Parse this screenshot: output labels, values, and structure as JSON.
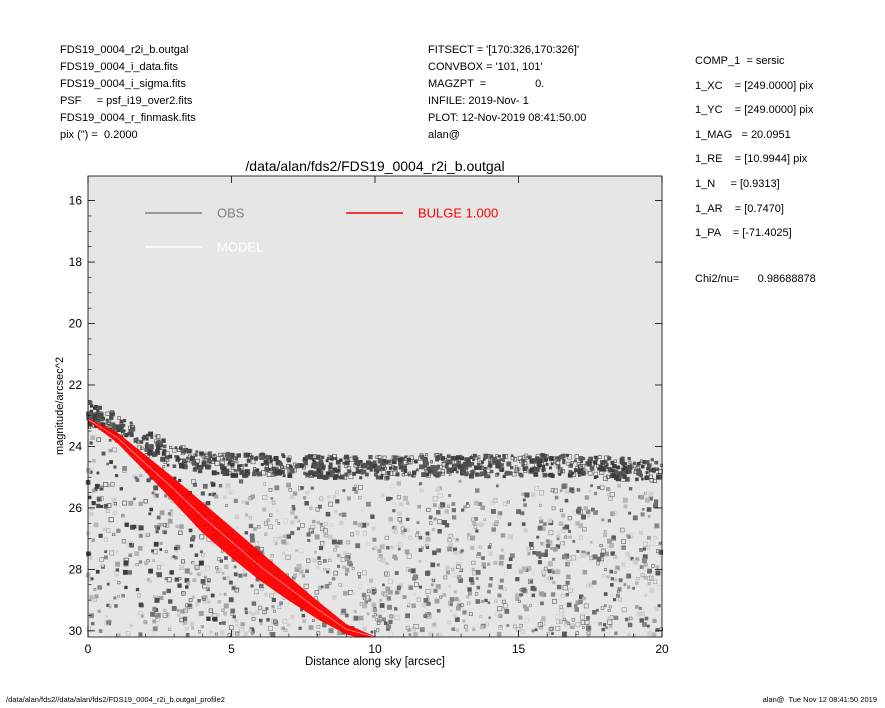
{
  "header_left": [
    "FDS19_0004_r2i_b.outgal",
    "FDS19_0004_i_data.fits",
    "FDS19_0004_i_sigma.fits",
    "PSF     = psf_i19_over2.fits",
    "FDS19_0004_r_finmask.fits",
    "pix (\") =  0.2000"
  ],
  "header_mid": [
    "FITSECT = '[170:326,170:326]'",
    "CONVBOX = '101, 101'",
    "MAGZPT  =                0.",
    "INFILE: 2019-Nov- 1",
    "PLOT: 12-Nov-2019 08:41:50.00",
    "alan@"
  ],
  "header_right": [
    "COMP_1  = sersic",
    "1_XC    = [249.0000] pix",
    "1_YC    = [249.0000] pix",
    "1_MAG   = 20.0951",
    "1_RE    = [10.9944] pix",
    "1_N     = [0.9313]",
    "1_AR    = [0.7470]",
    "1_PA    = [-71.4025]"
  ],
  "chi2": "Chi2/nu=      0.98688878",
  "footer_left": "/data/alan/fds2//data/alan/fds2/FDS19_0004_r2i_b.outgal_profile2",
  "footer_right": "alan@  Tue Nov 12 08:41:50 2019",
  "colors": {
    "plot_bg": "#e6e6e6",
    "obs": "#808080",
    "model": "#ffffff",
    "bulge": "#ff0000"
  },
  "chart_data": {
    "type": "scatter",
    "title": "/data/alan/fds2/FDS19_0004_r2i_b.outgal",
    "xlabel": "Distance along sky [arcsec]",
    "ylabel": "magnitude/arcsec^2",
    "xlim": [
      0,
      20
    ],
    "ylim": [
      30.2,
      15.2
    ],
    "y_inverted": true,
    "grid": false,
    "xticks": [
      "0",
      "5",
      "10",
      "15",
      "20"
    ],
    "yticks": [
      "16",
      "18",
      "20",
      "22",
      "24",
      "26",
      "28",
      "30"
    ],
    "legend": [
      {
        "label": "OBS",
        "color": "#808080"
      },
      {
        "label": "MODEL",
        "color": "#ffffff"
      },
      {
        "label": "BULGE  1.000",
        "color": "#ff0000"
      }
    ],
    "series": [
      {
        "name": "OBS",
        "description_points": "dense scatter of pixel surface brightness",
        "upper_envelope": {
          "x": [
            0,
            1,
            2,
            3,
            4,
            5,
            6,
            8,
            10,
            12,
            14,
            16,
            18,
            20
          ],
          "y": [
            22.9,
            23.3,
            23.8,
            24.3,
            24.5,
            24.6,
            24.6,
            24.65,
            24.7,
            24.6,
            24.65,
            24.6,
            24.7,
            24.8
          ]
        }
      },
      {
        "name": "BULGE  1.000",
        "upper_edge": {
          "x": [
            0,
            1,
            2,
            3,
            4,
            5,
            6,
            7,
            8,
            9,
            10
          ],
          "y": [
            23.1,
            23.55,
            24.3,
            25.05,
            25.85,
            26.65,
            27.45,
            28.25,
            29.05,
            29.8,
            30.2
          ]
        },
        "lower_edge": {
          "x": [
            0,
            1,
            2,
            3,
            4,
            5,
            6,
            7,
            8,
            9,
            9.4
          ],
          "y": [
            23.15,
            23.85,
            24.8,
            25.8,
            26.8,
            27.6,
            28.35,
            29.0,
            29.6,
            30.1,
            30.2
          ]
        }
      },
      {
        "name": "MODEL",
        "x": [
          0,
          1,
          2,
          3,
          4,
          5,
          6,
          7,
          8,
          9,
          10
        ],
        "y": [
          23.12,
          23.7,
          24.55,
          25.4,
          26.3,
          27.1,
          27.9,
          28.6,
          29.3,
          29.95,
          30.2
        ]
      }
    ]
  }
}
